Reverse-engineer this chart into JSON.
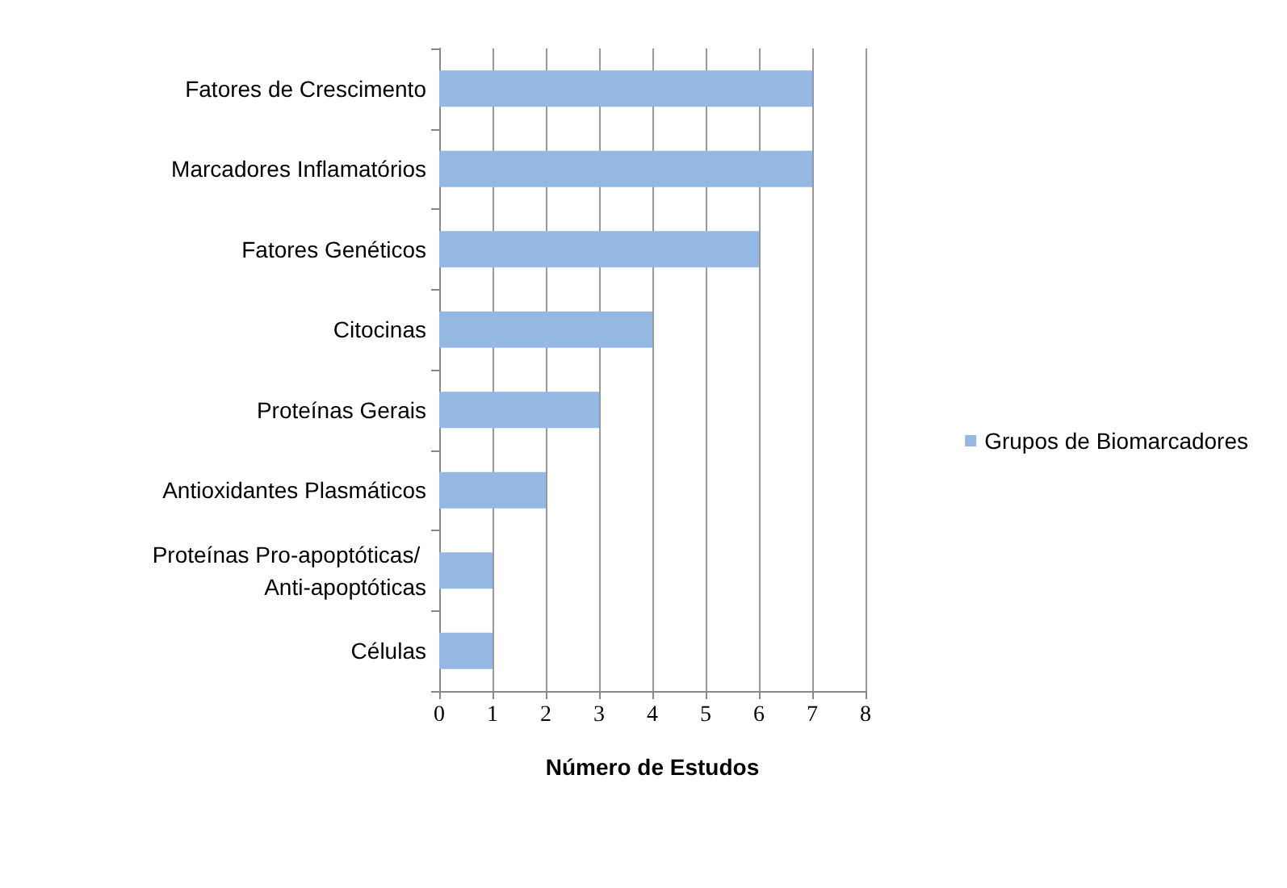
{
  "chart_data": {
    "type": "bar",
    "orientation": "horizontal",
    "xlabel": "Número de Estudos",
    "categories": [
      "Fatores de Crescimento",
      "Marcadores Inflamatórios",
      "Fatores Genéticos",
      "Citocinas",
      "Proteínas Gerais",
      "Antioxidantes Plasmáticos",
      "Proteínas Pro-apoptóticas/ Anti-apoptóticas",
      "Células"
    ],
    "series": [
      {
        "name": "Grupos de Biomarcadores",
        "color": "#95b8e3",
        "values": [
          7,
          7,
          6,
          4,
          3,
          2,
          1,
          1
        ]
      }
    ],
    "xlim": [
      0,
      8
    ],
    "xticks": [
      0,
      1,
      2,
      3,
      4,
      5,
      6,
      7,
      8
    ],
    "grid": "x",
    "legend": "right"
  }
}
